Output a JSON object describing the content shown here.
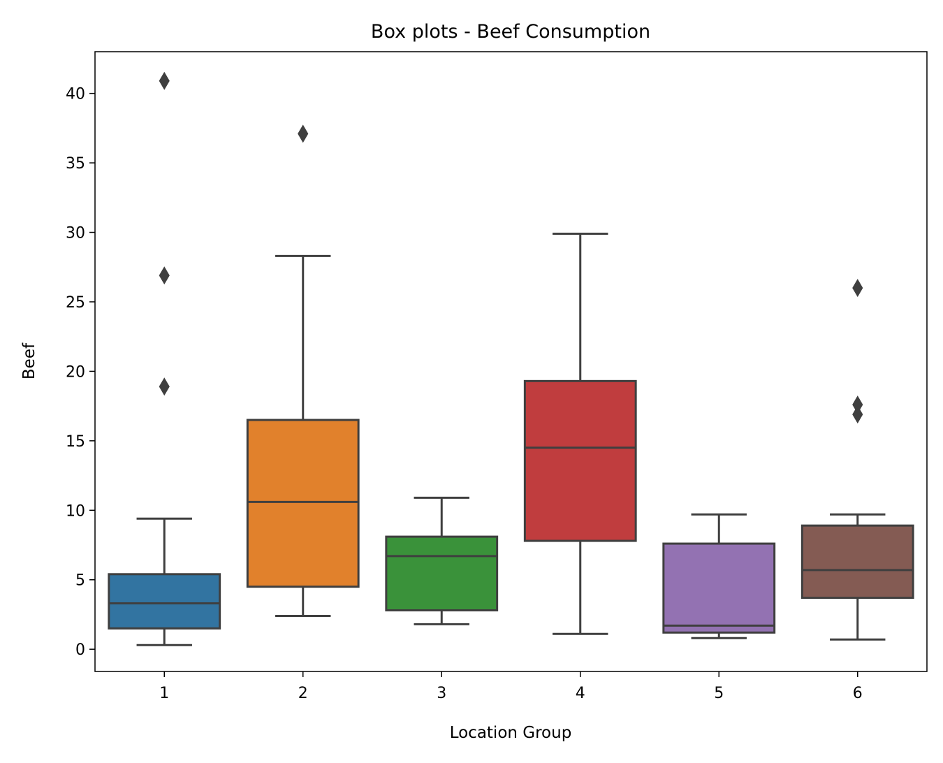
{
  "chart_data": {
    "type": "box",
    "title": "Box plots - Beef Consumption",
    "xlabel": "Location Group",
    "ylabel": "Beef",
    "ylim": [
      -1.6,
      43.0
    ],
    "yticks": [
      0,
      5,
      10,
      15,
      20,
      25,
      30,
      35,
      40
    ],
    "grid": false,
    "categories": [
      "1",
      "2",
      "3",
      "4",
      "5",
      "6"
    ],
    "boxes": [
      {
        "category": "1",
        "color": "#3274a1",
        "whisker_low": 0.3,
        "q1": 1.5,
        "median": 3.3,
        "q3": 5.4,
        "whisker_high": 9.4,
        "outliers": [
          18.9,
          26.9,
          40.9
        ]
      },
      {
        "category": "2",
        "color": "#e1812c",
        "whisker_low": 2.4,
        "q1": 4.5,
        "median": 10.6,
        "q3": 16.5,
        "whisker_high": 28.3,
        "outliers": [
          37.1
        ]
      },
      {
        "category": "3",
        "color": "#3a923a",
        "whisker_low": 1.8,
        "q1": 2.8,
        "median": 6.7,
        "q3": 8.1,
        "whisker_high": 10.9,
        "outliers": []
      },
      {
        "category": "4",
        "color": "#c03d3e",
        "whisker_low": 1.1,
        "q1": 7.8,
        "median": 14.5,
        "q3": 19.3,
        "whisker_high": 29.9,
        "outliers": []
      },
      {
        "category": "5",
        "color": "#9372b2",
        "whisker_low": 0.8,
        "q1": 1.2,
        "median": 1.7,
        "q3": 7.6,
        "whisker_high": 9.7,
        "outliers": []
      },
      {
        "category": "6",
        "color": "#845b53",
        "whisker_low": 0.7,
        "q1": 3.7,
        "median": 5.7,
        "q3": 8.9,
        "whisker_high": 9.7,
        "outliers": [
          16.9,
          17.6,
          26.0
        ]
      }
    ]
  }
}
